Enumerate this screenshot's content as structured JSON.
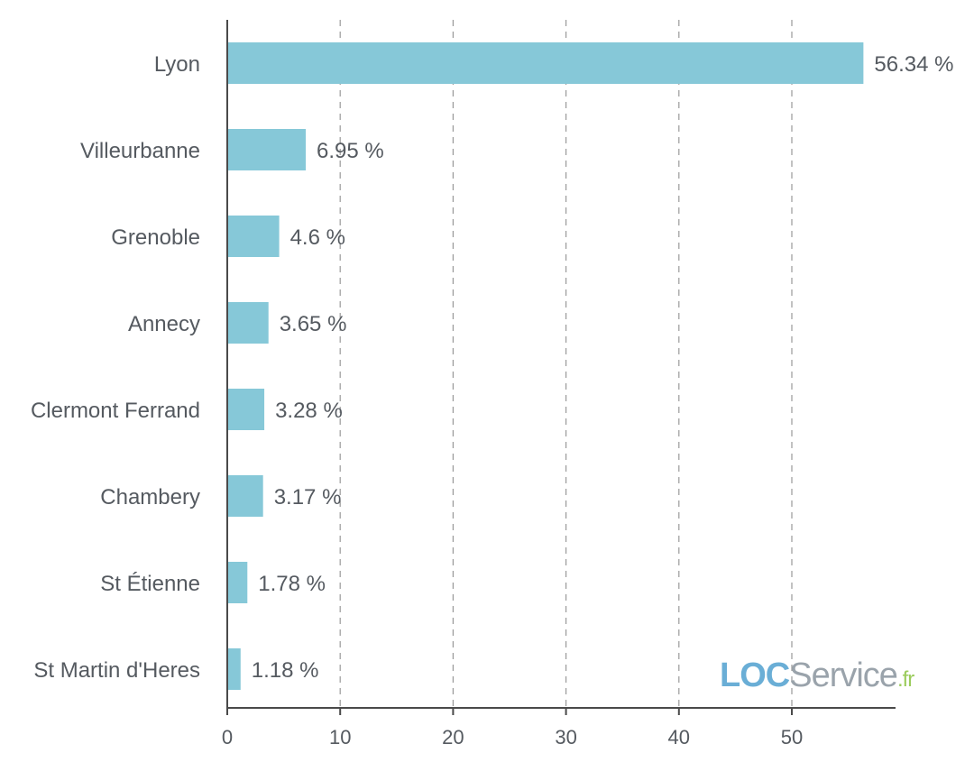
{
  "chart_data": {
    "type": "bar",
    "orientation": "horizontal",
    "categories": [
      "Lyon",
      "Villeurbanne",
      "Grenoble",
      "Annecy",
      "Clermont Ferrand",
      "Chambery",
      "St Étienne",
      "St Martin d'Heres"
    ],
    "values": [
      56.34,
      6.95,
      4.6,
      3.65,
      3.28,
      3.17,
      1.78,
      1.18
    ],
    "value_labels": [
      "56.34 %",
      "6.95 %",
      "4.6 %",
      "3.65 %",
      "3.28 %",
      "3.17 %",
      "1.78 %",
      "1.18 %"
    ],
    "x_ticks": [
      "0",
      "10",
      "20",
      "30",
      "40",
      "50"
    ],
    "xlim": [
      0,
      59
    ],
    "grid": "vertical dashed",
    "bar_color": "#86c8d8"
  },
  "watermark": {
    "loc": "LOC",
    "service": "Service",
    "fr": ".fr",
    "colors": {
      "loc": "#6aaed6",
      "service": "#9aa3ab",
      "fr": "#9bcc5c"
    }
  }
}
